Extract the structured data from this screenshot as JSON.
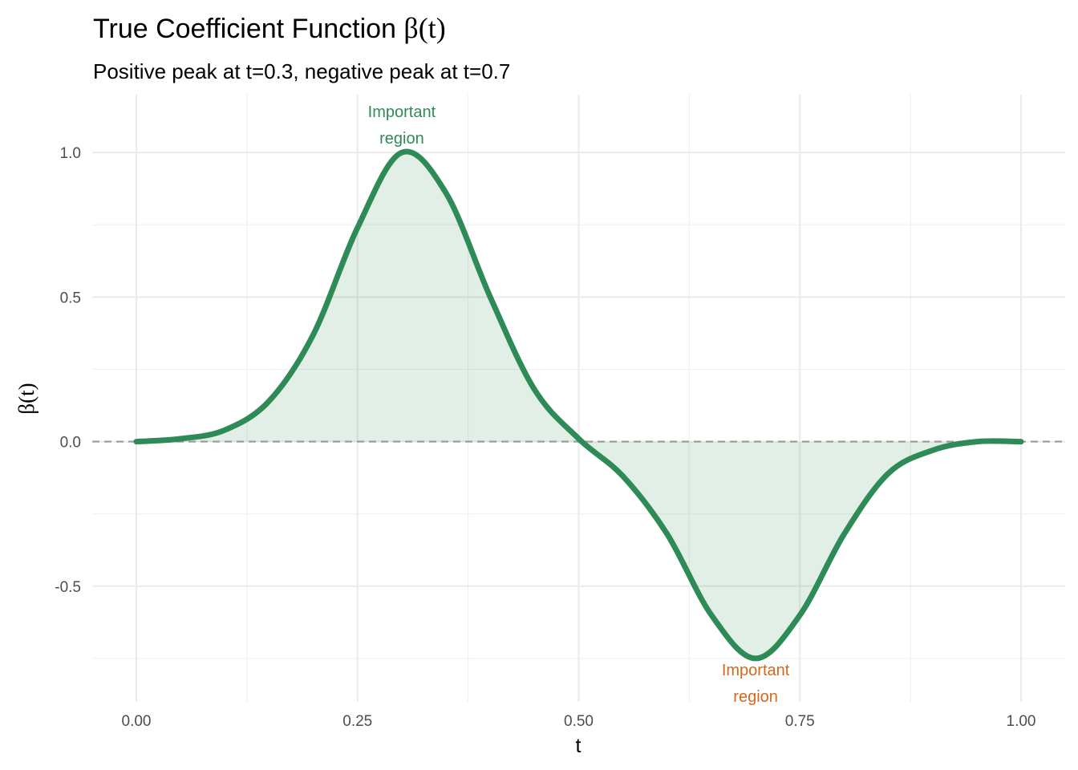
{
  "chart_data": {
    "type": "line",
    "title_prefix": "True Coefficient Function",
    "title_symbol": "β(t)",
    "subtitle": "Positive peak at t=0.3, negative peak at t=0.7",
    "xlabel": "t",
    "ylabel": "β(t)",
    "xlim": [
      0,
      1
    ],
    "ylim": [
      -0.9,
      1.2
    ],
    "x_ticks": [
      0,
      0.25,
      0.5,
      0.75,
      1
    ],
    "x_tick_labels": [
      "0.00",
      "0.25",
      "0.50",
      "0.75",
      "1.00"
    ],
    "y_ticks": [
      -0.5,
      0,
      0.5,
      1
    ],
    "y_tick_labels": [
      "-0.5",
      "0.0",
      "0.5",
      "1.0"
    ],
    "grid": true,
    "reference_line": {
      "y": 0,
      "style": "dashed",
      "color": "#999999"
    },
    "series": [
      {
        "x": [
          0.0,
          0.05,
          0.1,
          0.15,
          0.2,
          0.25,
          0.3,
          0.35,
          0.4,
          0.45,
          0.5,
          0.55,
          0.6,
          0.65,
          0.7,
          0.75,
          0.8,
          0.85,
          0.9,
          0.95,
          1.0
        ],
        "y": [
          0.0,
          0.01,
          0.04,
          0.14,
          0.37,
          0.74,
          1.0,
          0.86,
          0.5,
          0.18,
          0.01,
          -0.12,
          -0.32,
          -0.6,
          -0.75,
          -0.6,
          -0.32,
          -0.11,
          -0.03,
          0.0,
          0.0
        ],
        "color": "#2e8b57",
        "fill": "#2e8b57"
      }
    ],
    "annotations": [
      {
        "x": 0.3,
        "y": 1.0,
        "lines": [
          "Important",
          "region"
        ],
        "color": "#2e8b57",
        "position": "above"
      },
      {
        "x": 0.7,
        "y": -0.75,
        "lines": [
          "Important",
          "region"
        ],
        "color": "#d2691e",
        "position": "below"
      }
    ]
  }
}
